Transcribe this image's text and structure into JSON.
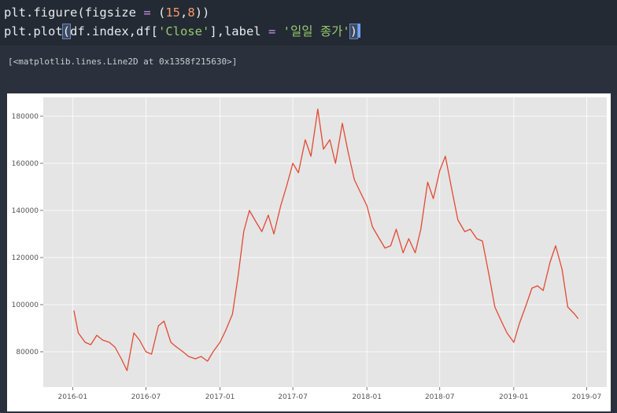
{
  "code": {
    "line1": {
      "a": "plt.figure(figsize ",
      "eq": "=",
      "b": " (",
      "n1": "15",
      "c": ",",
      "n2": "8",
      "d": "))"
    },
    "line2": {
      "a": "plt.plot",
      "paren_open": "(",
      "b": "df.index,df[",
      "s1": "'Close'",
      "c": "],label ",
      "eq": "=",
      "d": " ",
      "s2": "'일일 종가'",
      "paren_close": ")"
    }
  },
  "output": {
    "text": "[<matplotlib.lines.Line2D at 0x1358f215630>]"
  },
  "chart_data": {
    "type": "line",
    "series": [
      {
        "x": [
          "2016-01-04",
          "2016-01-15",
          "2016-02-01",
          "2016-02-15",
          "2016-03-01",
          "2016-03-15",
          "2016-04-01",
          "2016-04-15",
          "2016-05-01",
          "2016-05-15",
          "2016-06-01",
          "2016-06-15",
          "2016-07-01",
          "2016-07-15",
          "2016-08-01",
          "2016-08-15",
          "2016-09-01",
          "2016-09-15",
          "2016-10-01",
          "2016-10-15",
          "2016-11-01",
          "2016-11-15",
          "2016-12-01",
          "2016-12-15",
          "2017-01-01",
          "2017-01-15",
          "2017-02-01",
          "2017-02-15",
          "2017-03-01",
          "2017-03-15",
          "2017-04-01",
          "2017-04-15",
          "2017-05-01",
          "2017-05-15",
          "2017-06-01",
          "2017-06-15",
          "2017-07-01",
          "2017-07-15",
          "2017-08-01",
          "2017-08-15",
          "2017-09-01",
          "2017-09-15",
          "2017-10-01",
          "2017-10-15",
          "2017-11-01",
          "2017-11-15",
          "2017-12-01",
          "2017-12-15",
          "2018-01-01",
          "2018-01-15",
          "2018-02-01",
          "2018-02-15",
          "2018-03-01",
          "2018-03-15",
          "2018-04-01",
          "2018-04-15",
          "2018-05-01",
          "2018-05-15",
          "2018-06-01",
          "2018-06-15",
          "2018-07-01",
          "2018-07-15",
          "2018-08-01",
          "2018-08-15",
          "2018-09-01",
          "2018-09-15",
          "2018-10-01",
          "2018-10-15",
          "2018-11-01",
          "2018-11-15",
          "2018-12-01",
          "2018-12-15",
          "2019-01-01",
          "2019-01-15",
          "2019-02-01",
          "2019-02-15",
          "2019-03-01",
          "2019-03-15",
          "2019-04-01",
          "2019-04-15",
          "2019-05-01",
          "2019-05-15",
          "2019-06-01",
          "2019-06-10"
        ],
        "y": [
          97500,
          88000,
          84000,
          83000,
          87000,
          85000,
          84000,
          82000,
          77000,
          72000,
          88000,
          85000,
          80000,
          79000,
          91000,
          93000,
          84000,
          82000,
          80000,
          78000,
          77000,
          78000,
          76000,
          80000,
          84000,
          89000,
          96000,
          112000,
          131000,
          140000,
          135000,
          131000,
          138000,
          130000,
          142000,
          150000,
          160000,
          156000,
          170000,
          163000,
          183000,
          166000,
          170000,
          160000,
          177000,
          165000,
          153000,
          148000,
          142000,
          133000,
          128000,
          124000,
          125000,
          132000,
          122000,
          128000,
          122000,
          132000,
          152000,
          145000,
          157000,
          163000,
          148000,
          136000,
          131000,
          132000,
          128000,
          127000,
          112000,
          99000,
          93000,
          88000,
          84000,
          92000,
          100000,
          107000,
          108000,
          106000,
          118000,
          125000,
          115000,
          99000,
          96000,
          94000
        ]
      }
    ],
    "ylim": [
      65000,
      188000
    ],
    "yticks": [
      80000,
      100000,
      120000,
      140000,
      160000,
      180000
    ],
    "ytick_labels": [
      "80000",
      "100000",
      "120000",
      "140000",
      "160000",
      "180000"
    ],
    "xticks": [
      "2016-01",
      "2016-07",
      "2017-01",
      "2017-07",
      "2018-01",
      "2018-07",
      "2019-01",
      "2019-07"
    ],
    "xlim": [
      "2015-10-20",
      "2019-08-20"
    ],
    "grid": true,
    "colors": {
      "line": "#e24a33",
      "background": "#e5e5e5",
      "grid": "#ffffff"
    }
  }
}
